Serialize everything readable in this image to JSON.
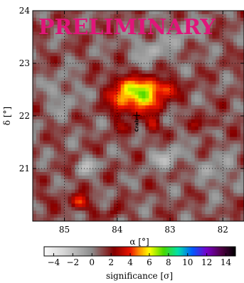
{
  "chart_data": {
    "type": "heatmap",
    "watermark": "PRELIMINARY",
    "xlabel": "α [°]",
    "ylabel": "δ [°]",
    "x_ticks": [
      "85",
      "84",
      "83",
      "82"
    ],
    "y_ticks": [
      "24",
      "23",
      "22",
      "21"
    ],
    "x_tick_values": [
      85,
      84,
      83,
      82
    ],
    "y_tick_values": [
      24,
      23,
      22,
      21
    ],
    "xlim": [
      85.6,
      81.6
    ],
    "ylim": [
      20.0,
      24.0
    ],
    "grid": true,
    "source": {
      "name": "Crab",
      "ra": 83.63,
      "dec": 22.01
    },
    "colorbar": {
      "label": "significance [σ]",
      "range": [
        -5,
        15
      ],
      "ticks": [
        "−4",
        "−2",
        "0",
        "2",
        "4",
        "6",
        "8",
        "10",
        "12",
        "14"
      ],
      "tick_values": [
        -4,
        -2,
        0,
        2,
        4,
        6,
        8,
        10,
        12,
        14
      ]
    },
    "hotspots": [
      {
        "ra": 83.55,
        "dec": 22.38,
        "peak_sigma": 6.0
      },
      {
        "ra": 83.35,
        "dec": 21.8,
        "peak_sigma": 3.0
      },
      {
        "ra": 82.3,
        "dec": 21.85,
        "peak_sigma": 2.5
      },
      {
        "ra": 84.7,
        "dec": 20.35,
        "peak_sigma": 3.5
      }
    ]
  }
}
